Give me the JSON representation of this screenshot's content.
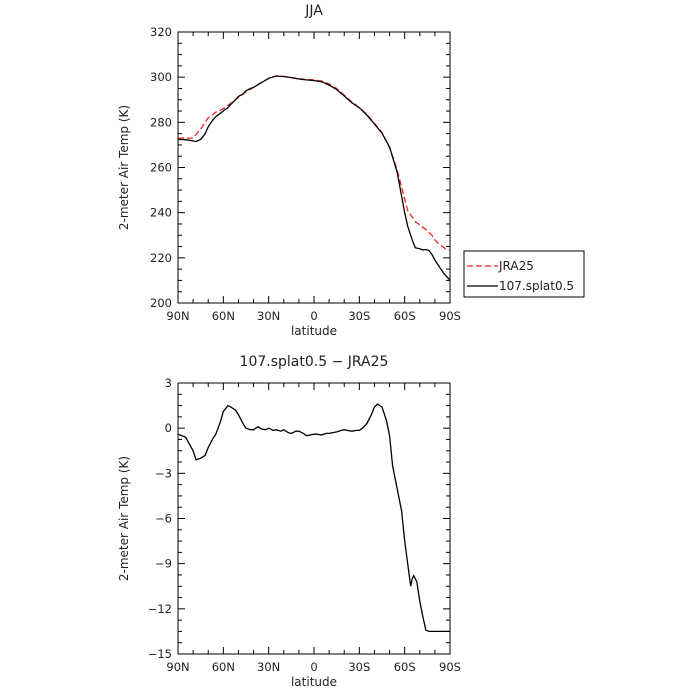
{
  "chart_data": [
    {
      "type": "line",
      "title": "JJA",
      "xlabel": "latitude",
      "ylabel": "2-meter Air Temp (K)",
      "xlim": [
        90,
        -90
      ],
      "ylim": [
        200,
        320
      ],
      "xticks": [
        90,
        60,
        30,
        0,
        -30,
        -60,
        -90
      ],
      "xtick_labels": [
        "90N",
        "60N",
        "30N",
        "0",
        "30S",
        "60S",
        "90S"
      ],
      "yticks": [
        200,
        220,
        240,
        260,
        280,
        300,
        320
      ],
      "ytick_labels": [
        "200",
        "220",
        "240",
        "260",
        "280",
        "300",
        "320"
      ],
      "grid": false,
      "legend_position": "right-outside",
      "series": [
        {
          "name": "JRA25",
          "color": "#e8231f",
          "dash": "dashed",
          "x": [
            90,
            85,
            80,
            75,
            70,
            65,
            60,
            55,
            50,
            45,
            40,
            35,
            30,
            25,
            20,
            15,
            10,
            5,
            0,
            -5,
            -10,
            -15,
            -20,
            -25,
            -30,
            -35,
            -40,
            -45,
            -50,
            -55,
            -60,
            -62,
            -65,
            -67,
            -70,
            -72,
            -75,
            -78,
            -80,
            -82,
            -85,
            -87,
            -90
          ],
          "y": [
            273,
            273,
            273,
            277,
            282,
            284.5,
            286,
            288.5,
            291,
            293.5,
            295.5,
            297.5,
            299.5,
            300.5,
            300.3,
            299.8,
            299.3,
            299,
            298.8,
            298.3,
            297,
            295,
            292,
            289,
            286.5,
            283.5,
            279.5,
            275.5,
            269,
            259,
            246,
            241,
            238,
            236,
            234.5,
            233.5,
            232,
            230,
            228,
            226.5,
            225,
            224,
            223.5
          ]
        },
        {
          "name": "107.splat0.5",
          "color": "#000000",
          "dash": "solid",
          "x": [
            90,
            85,
            80,
            78,
            75,
            72,
            70,
            67,
            65,
            62,
            60,
            57,
            55,
            52,
            50,
            47,
            45,
            42,
            40,
            35,
            30,
            25,
            20,
            15,
            10,
            5,
            0,
            -5,
            -10,
            -15,
            -20,
            -25,
            -30,
            -35,
            -40,
            -45,
            -50,
            -55,
            -60,
            -62,
            -65,
            -67,
            -70,
            -72,
            -74,
            -76,
            -78,
            -80,
            -82,
            -84,
            -86,
            -88,
            -90
          ],
          "y": [
            272.5,
            272.3,
            271.8,
            271.5,
            272.5,
            275,
            278,
            281,
            282.5,
            284,
            285,
            286.5,
            288,
            290,
            291.5,
            292.5,
            294,
            295,
            295.5,
            297.5,
            299.5,
            300.5,
            300.3,
            299.8,
            299.2,
            298.8,
            298.5,
            298,
            296.5,
            294.5,
            291.7,
            288.7,
            286.5,
            283.2,
            279.3,
            275.2,
            269,
            258,
            240,
            234,
            228,
            224.5,
            224,
            223.5,
            223.7,
            223.3,
            221.5,
            219,
            217,
            215,
            213,
            211.5,
            210.2
          ]
        }
      ]
    },
    {
      "type": "line",
      "title": "107.splat0.5 − JRA25",
      "xlabel": "latitude",
      "ylabel": "2-meter Air Temp (K)",
      "xlim": [
        90,
        -90
      ],
      "ylim": [
        -15,
        3
      ],
      "xticks": [
        90,
        60,
        30,
        0,
        -30,
        -60,
        -90
      ],
      "xtick_labels": [
        "90N",
        "60N",
        "30N",
        "0",
        "30S",
        "60S",
        "90S"
      ],
      "yticks": [
        -15,
        -12,
        -9,
        -6,
        -3,
        0,
        3
      ],
      "ytick_labels": [
        "−15",
        "−12",
        "−9",
        "−6",
        "−3",
        "0",
        "3"
      ],
      "grid": false,
      "series": [
        {
          "color": "#000000",
          "dash": "solid",
          "x": [
            90,
            85,
            80,
            78,
            75,
            72,
            70,
            67,
            65,
            62,
            60,
            57,
            55,
            52,
            50,
            47,
            45,
            42,
            40,
            37,
            35,
            32,
            30,
            27,
            25,
            22,
            20,
            17,
            15,
            12,
            10,
            7,
            5,
            2,
            0,
            -2,
            -5,
            -8,
            -10,
            -12,
            -15,
            -18,
            -20,
            -22,
            -25,
            -28,
            -30,
            -32,
            -35,
            -38,
            -40,
            -42,
            -45,
            -48,
            -50,
            -52,
            -55,
            -58,
            -60,
            -62,
            -64,
            -65,
            -66,
            -68,
            -70,
            -72,
            -74,
            -76,
            -78,
            -80,
            -82,
            -84,
            -86,
            -88,
            -90
          ],
          "y": [
            -0.4,
            -0.6,
            -1.5,
            -2.1,
            -2.0,
            -1.8,
            -1.3,
            -0.7,
            -0.4,
            0.4,
            1.1,
            1.5,
            1.4,
            1.2,
            0.9,
            0.3,
            0.0,
            -0.1,
            -0.1,
            0.1,
            -0.05,
            -0.1,
            0.0,
            -0.15,
            -0.1,
            -0.2,
            -0.1,
            -0.3,
            -0.35,
            -0.2,
            -0.2,
            -0.35,
            -0.5,
            -0.45,
            -0.4,
            -0.4,
            -0.45,
            -0.35,
            -0.35,
            -0.3,
            -0.25,
            -0.15,
            -0.1,
            -0.15,
            -0.2,
            -0.15,
            -0.15,
            0.0,
            0.3,
            0.9,
            1.4,
            1.6,
            1.4,
            0.5,
            -0.5,
            -2.5,
            -4.0,
            -5.5,
            -7.5,
            -9.0,
            -10.5,
            -10.0,
            -9.8,
            -10.2,
            -11.5,
            -12.5,
            -13.4,
            -13.5,
            -13.5,
            -13.5,
            -13.5,
            -13.5,
            -13.5,
            -13.5,
            -13.5
          ]
        }
      ]
    }
  ]
}
